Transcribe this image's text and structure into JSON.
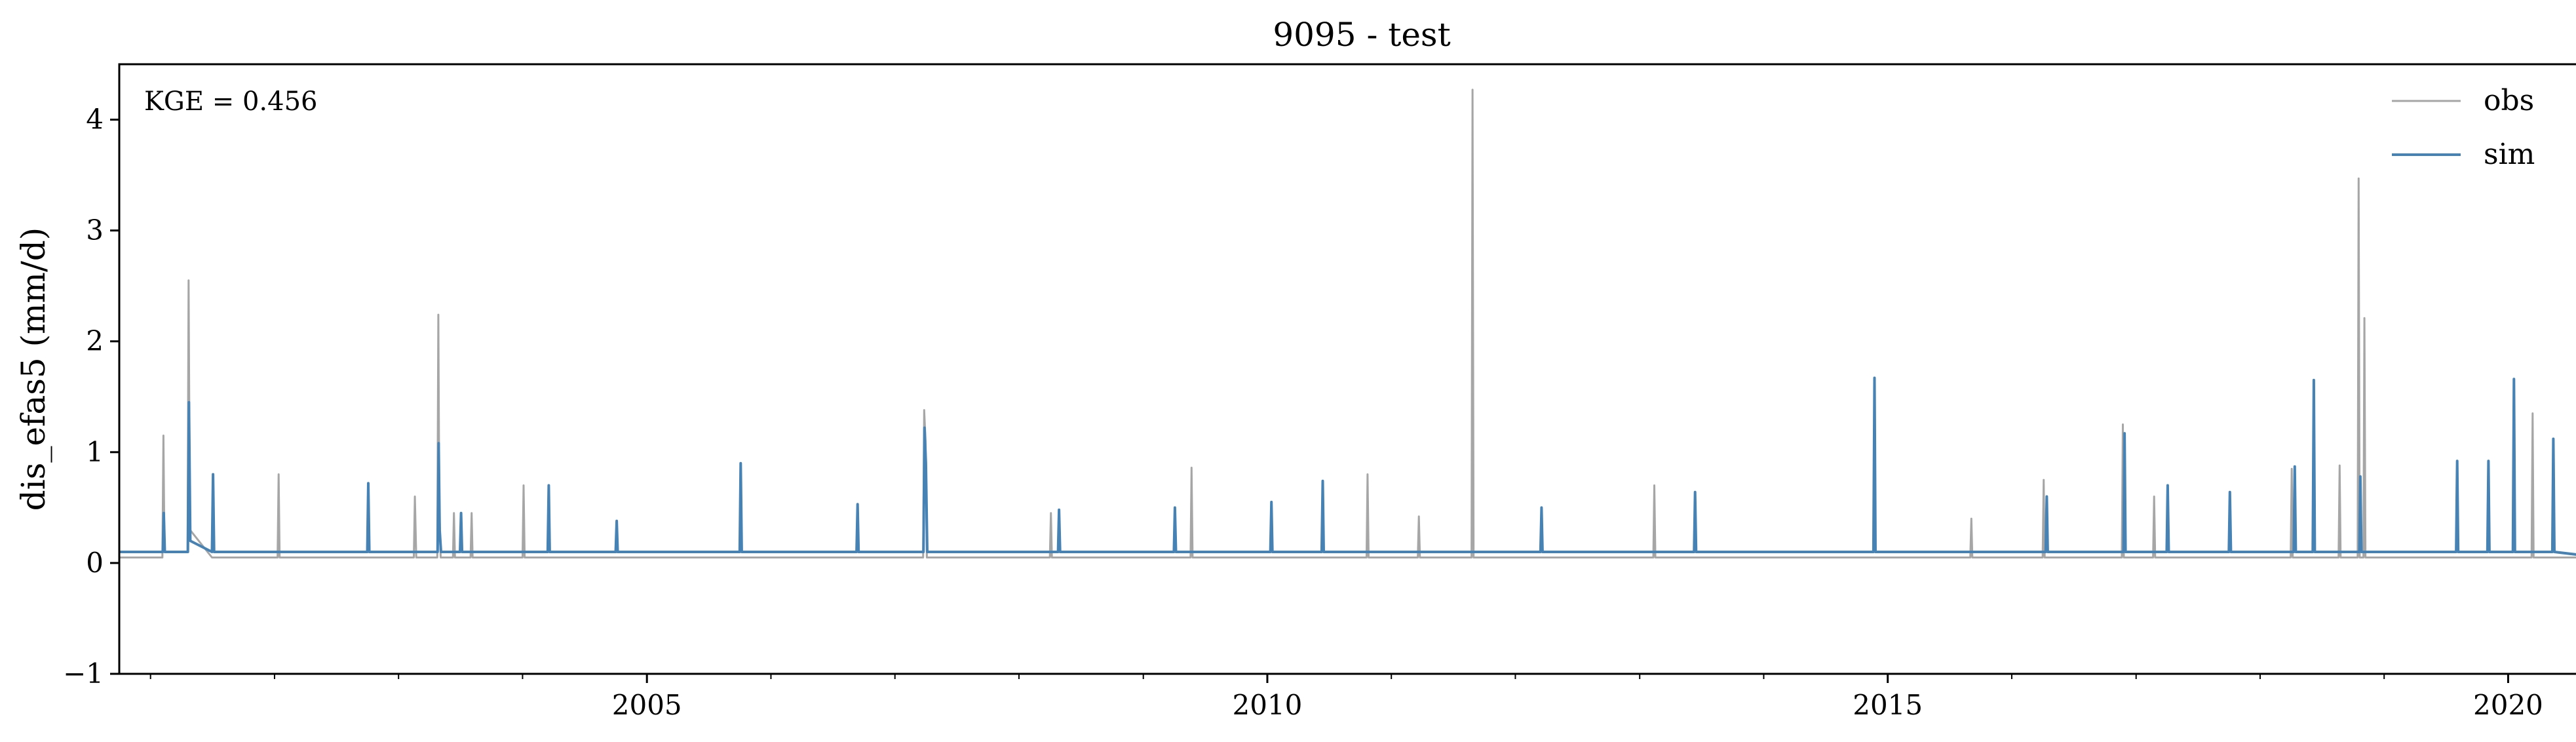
{
  "chart_data": {
    "type": "line",
    "title": "9095 - test",
    "xlabel": "",
    "ylabel": "dis_efas5 (mm/d)",
    "xlim": [
      "2000-10-01",
      "2020-09-30"
    ],
    "ylim": [
      -1,
      4.5
    ],
    "x_tick_labels": [
      "2005",
      "2010",
      "2015",
      "2020"
    ],
    "y_tick_labels": [
      "−1",
      "0",
      "1",
      "2",
      "3",
      "4"
    ],
    "grid": false,
    "legend": "top-right",
    "annotation": "KGE = 0.456",
    "series": [
      {
        "name": "obs",
        "color": "#a6a6a6",
        "x": [
          "2000-10-01",
          "2001-02-05",
          "2001-02-08",
          "2001-02-11",
          "2001-04-20",
          "2001-04-23",
          "2001-04-27",
          "2001-07-01",
          "2002-01-10",
          "2002-01-13",
          "2002-01-16",
          "2003-01-25",
          "2003-02-15",
          "2003-02-18",
          "2003-02-22",
          "2003-04-25",
          "2003-04-28",
          "2003-05-01",
          "2003-05-05",
          "2003-06-10",
          "2003-06-13",
          "2003-06-16",
          "2003-08-01",
          "2003-08-04",
          "2003-08-07",
          "2004-01-01",
          "2004-01-04",
          "2004-01-07",
          "2004-07-01",
          "2005-07-01",
          "2006-01-01",
          "2006-07-01",
          "2007-01-01",
          "2007-03-25",
          "2007-03-28",
          "2007-04-01",
          "2007-04-05",
          "2007-07-01",
          "2008-01-01",
          "2008-04-01",
          "2008-04-04",
          "2008-04-07",
          "2008-07-01",
          "2009-01-01",
          "2009-05-20",
          "2009-05-23",
          "2009-05-26",
          "2009-07-01",
          "2010-01-01",
          "2010-07-01",
          "2010-10-20",
          "2010-10-23",
          "2010-10-26",
          "2011-01-01",
          "2011-03-20",
          "2011-03-23",
          "2011-03-26",
          "2011-07-01",
          "2011-08-25",
          "2011-08-28",
          "2011-08-31",
          "2012-01-01",
          "2012-07-01",
          "2013-01-01",
          "2013-02-10",
          "2013-02-13",
          "2013-02-16",
          "2013-07-01",
          "2014-01-01",
          "2014-07-01",
          "2015-01-01",
          "2015-07-01",
          "2015-09-01",
          "2015-09-04",
          "2015-09-07",
          "2016-01-01",
          "2016-04-01",
          "2016-04-04",
          "2016-04-07",
          "2016-07-01",
          "2016-11-20",
          "2016-11-23",
          "2016-11-26",
          "2017-01-01",
          "2017-02-20",
          "2017-02-23",
          "2017-02-26",
          "2017-07-01",
          "2018-01-01",
          "2018-04-01",
          "2018-04-04",
          "2018-04-07",
          "2018-07-01",
          "2018-08-20",
          "2018-08-23",
          "2018-08-26",
          "2018-10-15",
          "2018-10-18",
          "2018-10-21",
          "2018-11-01",
          "2018-11-04",
          "2018-11-07",
          "2019-01-01",
          "2019-07-01",
          "2020-01-01",
          "2020-03-10",
          "2020-03-13",
          "2020-03-16",
          "2020-09-30"
        ],
        "y": [
          0.05,
          0.05,
          1.15,
          0.1,
          0.1,
          2.55,
          0.3,
          0.05,
          0.05,
          0.8,
          0.05,
          0.05,
          0.05,
          0.6,
          0.05,
          0.05,
          2.24,
          0.5,
          0.05,
          0.05,
          0.45,
          0.05,
          0.05,
          0.45,
          0.05,
          0.05,
          0.7,
          0.05,
          0.05,
          0.05,
          0.05,
          0.05,
          0.05,
          0.05,
          1.38,
          1.1,
          0.05,
          0.05,
          0.05,
          0.05,
          0.45,
          0.05,
          0.05,
          0.05,
          0.05,
          0.86,
          0.05,
          0.05,
          0.05,
          0.05,
          0.05,
          0.8,
          0.05,
          0.05,
          0.05,
          0.42,
          0.05,
          0.05,
          0.05,
          4.27,
          0.05,
          0.05,
          0.05,
          0.05,
          0.05,
          0.7,
          0.05,
          0.05,
          0.05,
          0.05,
          0.05,
          0.05,
          0.05,
          0.4,
          0.05,
          0.05,
          0.05,
          0.75,
          0.05,
          0.05,
          0.05,
          1.25,
          0.05,
          0.05,
          0.05,
          0.6,
          0.05,
          0.05,
          0.05,
          0.05,
          0.85,
          0.05,
          0.05,
          0.05,
          0.88,
          0.05,
          0.05,
          3.47,
          0.05,
          0.05,
          2.21,
          0.05,
          0.05,
          0.05,
          0.05,
          0.05,
          1.35,
          0.05,
          0.05
        ]
      },
      {
        "name": "sim",
        "color": "#4682b4",
        "x": [
          "2000-10-01",
          "2001-02-06",
          "2001-02-09",
          "2001-02-12",
          "2001-04-21",
          "2001-04-24",
          "2001-04-28",
          "2001-07-01",
          "2001-07-04",
          "2001-07-07",
          "2002-01-01",
          "2002-10-01",
          "2002-10-04",
          "2002-10-07",
          "2003-01-01",
          "2003-04-26",
          "2003-04-29",
          "2003-05-02",
          "2003-05-06",
          "2003-07-01",
          "2003-07-04",
          "2003-07-07",
          "2004-03-15",
          "2004-03-18",
          "2004-03-21",
          "2004-10-01",
          "2004-10-04",
          "2004-10-07",
          "2005-10-01",
          "2005-10-04",
          "2005-10-07",
          "2006-09-10",
          "2006-09-13",
          "2006-09-16",
          "2007-03-26",
          "2007-03-29",
          "2007-04-02",
          "2007-04-06",
          "2008-04-25",
          "2008-04-28",
          "2008-05-01",
          "2009-04-01",
          "2009-04-04",
          "2009-04-07",
          "2010-01-10",
          "2010-01-13",
          "2010-01-16",
          "2010-06-10",
          "2010-06-13",
          "2010-06-16",
          "2011-01-01",
          "2012-03-15",
          "2012-03-18",
          "2012-03-21",
          "2013-06-10",
          "2013-06-13",
          "2013-06-16",
          "2014-11-20",
          "2014-11-23",
          "2014-11-26",
          "2015-01-01",
          "2016-04-10",
          "2016-04-13",
          "2016-04-16",
          "2016-11-25",
          "2016-11-28",
          "2016-12-01",
          "2017-04-01",
          "2017-04-04",
          "2017-04-07",
          "2017-10-01",
          "2017-10-04",
          "2017-10-07",
          "2018-04-10",
          "2018-04-13",
          "2018-04-16",
          "2018-06-05",
          "2018-06-08",
          "2018-06-11",
          "2018-10-20",
          "2018-10-23",
          "2018-10-26",
          "2019-08-01",
          "2019-08-04",
          "2019-08-07",
          "2019-11-01",
          "2019-11-04",
          "2019-11-07",
          "2020-01-15",
          "2020-01-18",
          "2020-01-21",
          "2020-05-10",
          "2020-05-13",
          "2020-05-16",
          "2020-09-30"
        ],
        "y": [
          0.1,
          0.1,
          0.45,
          0.1,
          0.1,
          1.45,
          0.2,
          0.1,
          0.8,
          0.1,
          0.1,
          0.1,
          0.72,
          0.1,
          0.1,
          0.1,
          1.08,
          0.3,
          0.1,
          0.1,
          0.45,
          0.1,
          0.1,
          0.7,
          0.1,
          0.1,
          0.38,
          0.1,
          0.1,
          0.9,
          0.1,
          0.1,
          0.53,
          0.1,
          0.1,
          1.22,
          0.9,
          0.1,
          0.1,
          0.48,
          0.1,
          0.1,
          0.5,
          0.1,
          0.1,
          0.55,
          0.1,
          0.1,
          0.74,
          0.1,
          0.1,
          0.1,
          0.5,
          0.1,
          0.1,
          0.64,
          0.1,
          0.1,
          1.67,
          0.1,
          0.1,
          0.1,
          0.6,
          0.1,
          0.1,
          1.17,
          0.1,
          0.1,
          0.7,
          0.1,
          0.1,
          0.64,
          0.1,
          0.1,
          0.87,
          0.1,
          0.1,
          1.65,
          0.1,
          0.1,
          0.78,
          0.1,
          0.1,
          0.92,
          0.1,
          0.1,
          0.92,
          0.1,
          0.1,
          1.66,
          0.1,
          0.1,
          1.12,
          0.1,
          0.05
        ]
      }
    ]
  }
}
